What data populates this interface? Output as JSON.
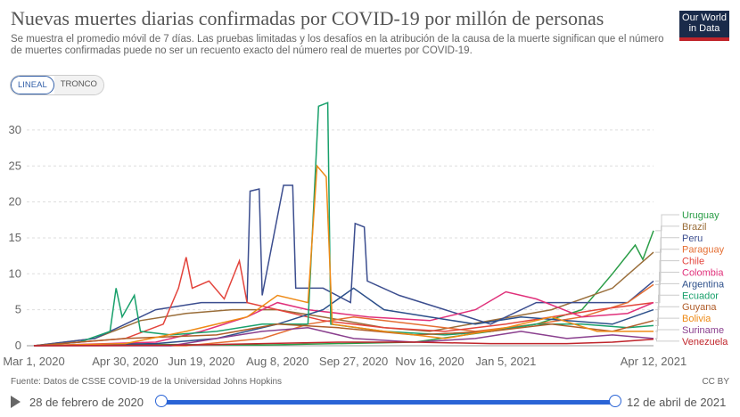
{
  "header": {
    "title": "Nuevas muertes diarias confirmadas por COVID-19 por millón de personas",
    "subtitle": "Se muestra el promedio móvil de 7 días. Las pruebas limitadas y los desafíos en la atribución de la causa de la muerte significan que el número de muertes confirmadas puede no ser un recuento exacto del número real de muertes por COVID-19.",
    "logo": "Our World in Data"
  },
  "toggles": {
    "linear": "LINEAL",
    "log": "TRONCO"
  },
  "footer": {
    "source": "Fuente: Datos de CSSE COVID-19 de la Universidad Johns Hopkins",
    "license": "CC BY",
    "start_date": "28 de febrero de 2020",
    "end_date": "12 de abril de 2021"
  },
  "chart_data": {
    "type": "line",
    "title": "Nuevas muertes diarias confirmadas por COVID-19 por millón de personas",
    "x_unit": "days since Mar 1, 2020",
    "xlim": [
      0,
      407
    ],
    "ylim": [
      0,
      33
    ],
    "yticks": [
      0,
      5,
      10,
      15,
      20,
      25,
      30
    ],
    "xticks": [
      {
        "day": 0,
        "label": "Mar 1, 2020"
      },
      {
        "day": 60,
        "label": "Apr 30, 2020"
      },
      {
        "day": 110,
        "label": "Jun 19, 2020"
      },
      {
        "day": 160,
        "label": "Aug 8, 2020"
      },
      {
        "day": 210,
        "label": "Sep 27, 2020"
      },
      {
        "day": 260,
        "label": "Nov 16, 2020"
      },
      {
        "day": 310,
        "label": "Jan 5, 2021"
      },
      {
        "day": 407,
        "label": "Apr 12, 2021"
      }
    ],
    "series": [
      {
        "name": "Uruguay",
        "color": "#2a9d47",
        "points": [
          [
            0,
            0
          ],
          [
            60,
            0.2
          ],
          [
            150,
            0.1
          ],
          [
            250,
            0.5
          ],
          [
            300,
            2
          ],
          [
            330,
            3
          ],
          [
            360,
            5
          ],
          [
            380,
            10
          ],
          [
            395,
            14
          ],
          [
            400,
            12
          ],
          [
            407,
            16
          ]
        ]
      },
      {
        "name": "Brazil",
        "color": "#996d39",
        "points": [
          [
            0,
            0
          ],
          [
            40,
            1
          ],
          [
            70,
            3.5
          ],
          [
            100,
            4.5
          ],
          [
            130,
            5
          ],
          [
            160,
            5
          ],
          [
            190,
            4
          ],
          [
            230,
            2.5
          ],
          [
            260,
            2
          ],
          [
            300,
            3.5
          ],
          [
            340,
            5
          ],
          [
            380,
            8
          ],
          [
            407,
            13
          ]
        ]
      },
      {
        "name": "Peru",
        "color": "#3c4e8f",
        "points": [
          [
            0,
            0
          ],
          [
            40,
            1
          ],
          [
            60,
            3
          ],
          [
            80,
            5
          ],
          [
            110,
            6
          ],
          [
            140,
            6
          ],
          [
            142,
            21.5
          ],
          [
            148,
            21.8
          ],
          [
            150,
            7
          ],
          [
            164,
            22.3
          ],
          [
            170,
            22.3
          ],
          [
            172,
            8
          ],
          [
            190,
            8
          ],
          [
            208,
            6
          ],
          [
            211,
            17
          ],
          [
            217,
            16.5
          ],
          [
            219,
            9
          ],
          [
            240,
            7
          ],
          [
            270,
            5
          ],
          [
            300,
            3
          ],
          [
            330,
            6
          ],
          [
            360,
            6
          ],
          [
            390,
            6
          ],
          [
            407,
            9
          ]
        ]
      },
      {
        "name": "Paraguay",
        "color": "#e56e32",
        "points": [
          [
            0,
            0
          ],
          [
            100,
            0
          ],
          [
            150,
            1
          ],
          [
            180,
            3
          ],
          [
            210,
            4
          ],
          [
            250,
            3
          ],
          [
            290,
            2
          ],
          [
            330,
            3
          ],
          [
            360,
            4
          ],
          [
            390,
            6
          ],
          [
            407,
            8.5
          ]
        ]
      },
      {
        "name": "Chile",
        "color": "#e3443c",
        "points": [
          [
            0,
            0
          ],
          [
            60,
            1
          ],
          [
            85,
            3
          ],
          [
            95,
            8
          ],
          [
            100,
            12.3
          ],
          [
            104,
            8
          ],
          [
            115,
            9
          ],
          [
            125,
            6.5
          ],
          [
            135,
            11.8
          ],
          [
            140,
            6
          ],
          [
            160,
            5
          ],
          [
            190,
            3.5
          ],
          [
            230,
            2.5
          ],
          [
            270,
            2
          ],
          [
            310,
            3
          ],
          [
            340,
            4
          ],
          [
            370,
            5
          ],
          [
            407,
            6
          ]
        ]
      },
      {
        "name": "Colombia",
        "color": "#e0307a",
        "points": [
          [
            0,
            0
          ],
          [
            80,
            0.5
          ],
          [
            110,
            2
          ],
          [
            140,
            4
          ],
          [
            160,
            6
          ],
          [
            180,
            5
          ],
          [
            220,
            4
          ],
          [
            260,
            3.5
          ],
          [
            290,
            5
          ],
          [
            310,
            7.5
          ],
          [
            330,
            6.5
          ],
          [
            360,
            4
          ],
          [
            390,
            4.5
          ],
          [
            407,
            6
          ]
        ]
      },
      {
        "name": "Argentina",
        "color": "#2c4f8a",
        "points": [
          [
            0,
            0
          ],
          [
            80,
            0.3
          ],
          [
            120,
            1
          ],
          [
            160,
            3
          ],
          [
            190,
            5
          ],
          [
            210,
            8
          ],
          [
            230,
            5
          ],
          [
            260,
            4
          ],
          [
            290,
            3
          ],
          [
            320,
            4
          ],
          [
            350,
            3.5
          ],
          [
            380,
            3
          ],
          [
            407,
            5
          ]
        ]
      },
      {
        "name": "Ecuador",
        "color": "#18a06b",
        "points": [
          [
            0,
            0
          ],
          [
            30,
            0.5
          ],
          [
            50,
            2
          ],
          [
            54,
            8
          ],
          [
            58,
            4
          ],
          [
            66,
            7
          ],
          [
            70,
            2
          ],
          [
            90,
            1.5
          ],
          [
            120,
            2
          ],
          [
            150,
            3
          ],
          [
            180,
            3
          ],
          [
            187,
            33.3
          ],
          [
            193,
            33.8
          ],
          [
            195,
            3
          ],
          [
            230,
            2
          ],
          [
            270,
            1.5
          ],
          [
            300,
            2
          ],
          [
            330,
            3
          ],
          [
            360,
            3
          ],
          [
            390,
            2.5
          ],
          [
            407,
            2.8
          ]
        ]
      },
      {
        "name": "Guyana",
        "color": "#b05d2a",
        "points": [
          [
            0,
            0
          ],
          [
            60,
            1
          ],
          [
            120,
            1.5
          ],
          [
            160,
            3
          ],
          [
            200,
            2.5
          ],
          [
            250,
            1.5
          ],
          [
            300,
            2
          ],
          [
            340,
            3
          ],
          [
            380,
            2
          ],
          [
            407,
            3.5
          ]
        ]
      },
      {
        "name": "Bolivia",
        "color": "#ee8a16",
        "points": [
          [
            0,
            0
          ],
          [
            60,
            0.3
          ],
          [
            100,
            2
          ],
          [
            140,
            4
          ],
          [
            160,
            7
          ],
          [
            180,
            6
          ],
          [
            186,
            25
          ],
          [
            192,
            23.5
          ],
          [
            196,
            3
          ],
          [
            230,
            2
          ],
          [
            270,
            1
          ],
          [
            310,
            2.5
          ],
          [
            340,
            4
          ],
          [
            370,
            2
          ],
          [
            407,
            2
          ]
        ]
      },
      {
        "name": "Suriname",
        "color": "#8a3f8e",
        "points": [
          [
            0,
            0
          ],
          [
            90,
            0
          ],
          [
            120,
            1
          ],
          [
            150,
            2
          ],
          [
            180,
            2.5
          ],
          [
            210,
            1
          ],
          [
            250,
            0.5
          ],
          [
            290,
            1
          ],
          [
            320,
            2
          ],
          [
            350,
            1
          ],
          [
            380,
            1.5
          ],
          [
            407,
            1
          ]
        ]
      },
      {
        "name": "Venezuela",
        "color": "#c0252b",
        "points": [
          [
            0,
            0
          ],
          [
            100,
            0.1
          ],
          [
            150,
            0.3
          ],
          [
            200,
            0.5
          ],
          [
            250,
            0.5
          ],
          [
            300,
            0.3
          ],
          [
            350,
            0.3
          ],
          [
            380,
            0.5
          ],
          [
            407,
            0.9
          ]
        ]
      }
    ]
  }
}
